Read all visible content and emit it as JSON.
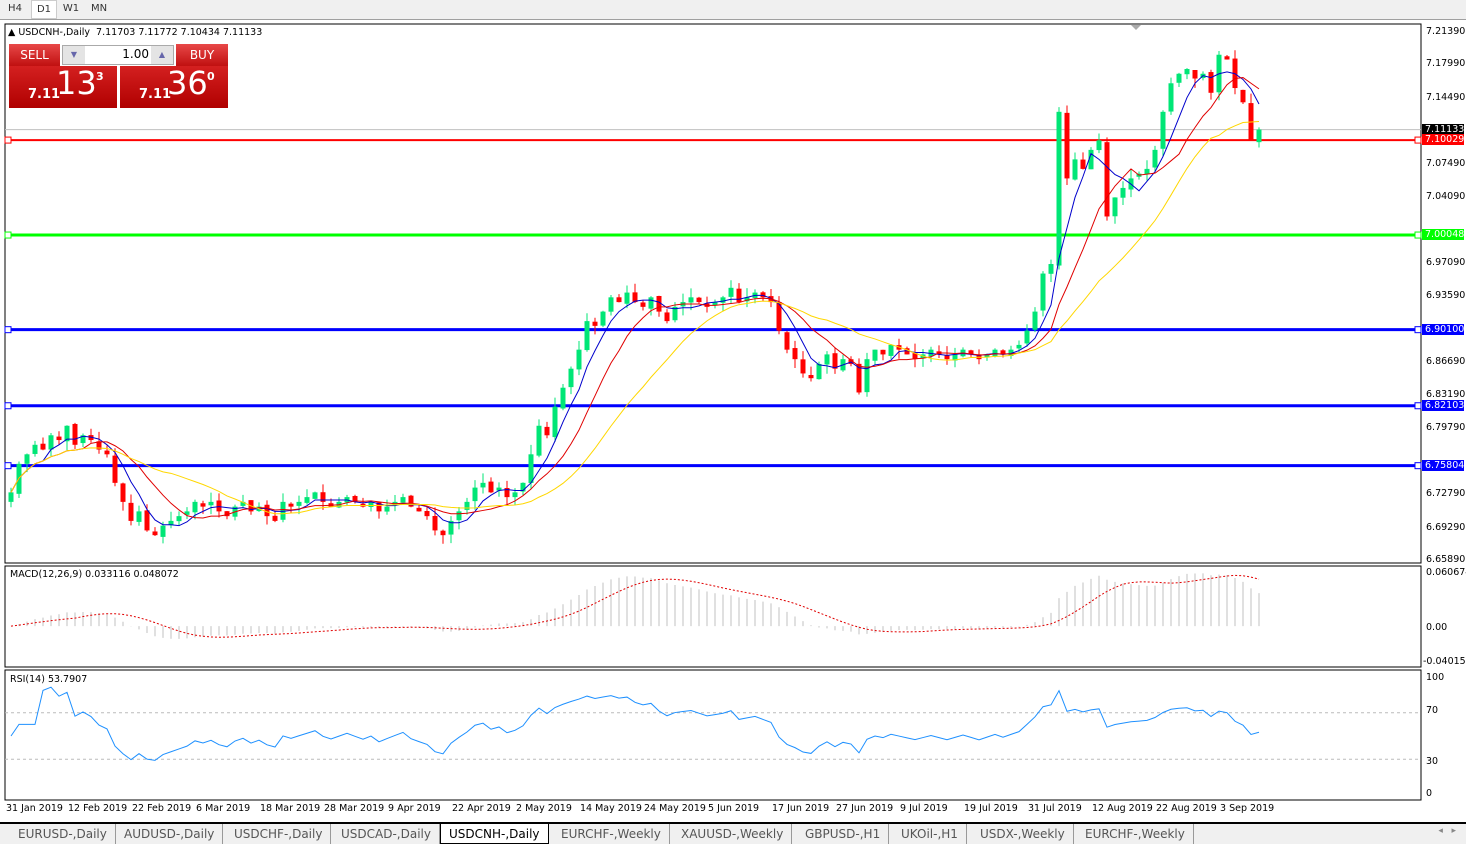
{
  "timeframes": [
    "H4",
    "D1",
    "W1",
    "MN"
  ],
  "active_timeframe": "D1",
  "header": {
    "symbol": "USDCNH-,Daily",
    "ohlc": "7.11703 7.11772 7.10434 7.11133"
  },
  "trade": {
    "sell_label": "SELL",
    "buy_label": "BUY",
    "volume": "1.00",
    "sell_small": "7.11",
    "sell_big": "13",
    "sell_pip": "3",
    "buy_small": "7.11",
    "buy_big": "36",
    "buy_pip": "0"
  },
  "price_axis": [
    "7.21390",
    "7.17990",
    "7.14490",
    "7.07490",
    "7.04090",
    "6.97090",
    "6.93590",
    "6.86690",
    "6.83190",
    "6.79790",
    "6.72790",
    "6.69290",
    "6.65890"
  ],
  "current_price": "7.11133",
  "levels": [
    {
      "price": "7.10029",
      "color": "#ff0000"
    },
    {
      "price": "7.00048",
      "color": "#00ff00"
    },
    {
      "price": "6.90100",
      "color": "#0000ff"
    },
    {
      "price": "6.82103",
      "color": "#0000ff"
    },
    {
      "price": "6.75804",
      "color": "#0000ff"
    }
  ],
  "macd": {
    "label": "MACD(12,26,9) 0.033116 0.048072",
    "axis": [
      "0.060674",
      "0.00",
      "-0.040152"
    ]
  },
  "rsi": {
    "label": "RSI(14) 53.7907",
    "axis": [
      "100",
      "70",
      "30",
      "0"
    ]
  },
  "x_labels": [
    "31 Jan 2019",
    "12 Feb 2019",
    "22 Feb 2019",
    "6 Mar 2019",
    "18 Mar 2019",
    "28 Mar 2019",
    "9 Apr 2019",
    "22 Apr 2019",
    "2 May 2019",
    "14 May 2019",
    "24 May 2019",
    "5 Jun 2019",
    "17 Jun 2019",
    "27 Jun 2019",
    "9 Jul 2019",
    "19 Jul 2019",
    "31 Jul 2019",
    "12 Aug 2019",
    "22 Aug 2019",
    "3 Sep 2019"
  ],
  "tabs": [
    "EURUSD-,Daily",
    "AUDUSD-,Daily",
    "USDCHF-,Daily",
    "USDCAD-,Daily",
    "USDCNH-,Daily",
    "EURCHF-,Weekly",
    "XAUUSD-,Weekly",
    "GBPUSD-,H1",
    "UKOil-,H1",
    "USDX-,Weekly",
    "EURCHF-,Weekly"
  ],
  "active_tab": "USDCNH-,Daily",
  "colors": {
    "bull": "#00e676",
    "bear": "#ff0000",
    "ma_fast": "#0000cc",
    "ma_mid": "#e00000",
    "ma_slow": "#ffd700"
  },
  "chart_data": {
    "type": "candlestick",
    "closes": [
      6.73,
      6.76,
      6.77,
      6.78,
      6.775,
      6.79,
      6.785,
      6.8,
      6.78,
      6.79,
      6.785,
      6.775,
      6.77,
      6.74,
      6.72,
      6.7,
      6.71,
      6.69,
      6.685,
      6.695,
      6.7,
      6.705,
      6.71,
      6.72,
      6.715,
      6.72,
      6.71,
      6.705,
      6.715,
      6.72,
      6.71,
      6.715,
      6.705,
      6.7,
      6.72,
      6.715,
      6.72,
      6.725,
      6.73,
      6.72,
      6.715,
      6.72,
      6.725,
      6.72,
      6.715,
      6.72,
      6.71,
      6.715,
      6.72,
      6.725,
      6.715,
      6.71,
      6.705,
      6.69,
      6.685,
      6.7,
      6.71,
      6.72,
      6.735,
      6.74,
      6.73,
      6.735,
      6.725,
      6.73,
      6.74,
      6.77,
      6.8,
      6.79,
      6.82,
      6.84,
      6.86,
      6.88,
      6.91,
      6.905,
      6.92,
      6.935,
      6.93,
      6.94,
      6.93,
      6.925,
      6.935,
      6.92,
      6.91,
      6.925,
      6.93,
      6.935,
      6.93,
      6.925,
      6.93,
      6.935,
      6.945,
      6.93,
      6.935,
      6.94,
      6.935,
      6.93,
      6.9,
      6.88,
      6.87,
      6.855,
      6.85,
      6.865,
      6.875,
      6.86,
      6.87,
      6.865,
      6.835,
      6.87,
      6.88,
      6.875,
      6.885,
      6.88,
      6.875,
      6.87,
      6.875,
      6.88,
      6.875,
      6.87,
      6.875,
      6.88,
      6.875,
      6.87,
      6.875,
      6.88,
      6.875,
      6.88,
      6.885,
      6.9,
      6.92,
      6.96,
      6.97,
      7.13,
      7.06,
      7.08,
      7.07,
      7.09,
      7.1,
      7.02,
      7.04,
      7.05,
      7.06,
      7.065,
      7.07,
      7.09,
      7.13,
      7.16,
      7.17,
      7.175,
      7.165,
      7.17,
      7.15,
      7.19,
      7.185,
      7.155,
      7.14,
      7.1,
      7.11133
    ],
    "ylim": [
      6.6589,
      7.2139
    ]
  }
}
